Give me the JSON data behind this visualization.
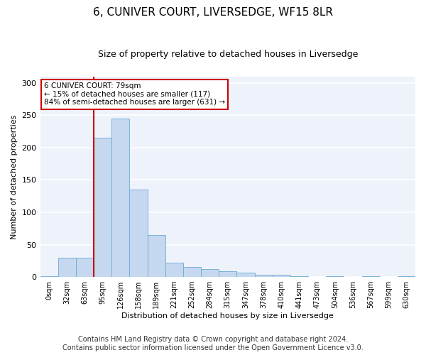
{
  "title": "6, CUNIVER COURT, LIVERSEDGE, WF15 8LR",
  "subtitle": "Size of property relative to detached houses in Liversedge",
  "xlabel": "Distribution of detached houses by size in Liversedge",
  "ylabel": "Number of detached properties",
  "bar_color": "#c5d8ef",
  "bar_edge_color": "#6aaad4",
  "categories": [
    "0sqm",
    "32sqm",
    "63sqm",
    "95sqm",
    "126sqm",
    "158sqm",
    "189sqm",
    "221sqm",
    "252sqm",
    "284sqm",
    "315sqm",
    "347sqm",
    "378sqm",
    "410sqm",
    "441sqm",
    "473sqm",
    "504sqm",
    "536sqm",
    "567sqm",
    "599sqm",
    "630sqm"
  ],
  "values": [
    1,
    30,
    30,
    215,
    245,
    135,
    65,
    22,
    15,
    12,
    9,
    7,
    3,
    3,
    1,
    0,
    1,
    0,
    1,
    0,
    1
  ],
  "ylim": [
    0,
    310
  ],
  "yticks": [
    0,
    50,
    100,
    150,
    200,
    250,
    300
  ],
  "vline_bin_index": 2.5,
  "vline_color": "#cc0000",
  "annotation_title": "6 CUNIVER COURT: 79sqm",
  "annotation_line1": "← 15% of detached houses are smaller (117)",
  "annotation_line2": "84% of semi-detached houses are larger (631) →",
  "annotation_box_edge": "#cc0000",
  "footer_line1": "Contains HM Land Registry data © Crown copyright and database right 2024.",
  "footer_line2": "Contains public sector information licensed under the Open Government Licence v3.0.",
  "background_color": "#eef2fb",
  "grid_color": "#ffffff",
  "title_fontsize": 11,
  "subtitle_fontsize": 9,
  "axis_label_fontsize": 8,
  "tick_fontsize": 7,
  "footer_fontsize": 7
}
